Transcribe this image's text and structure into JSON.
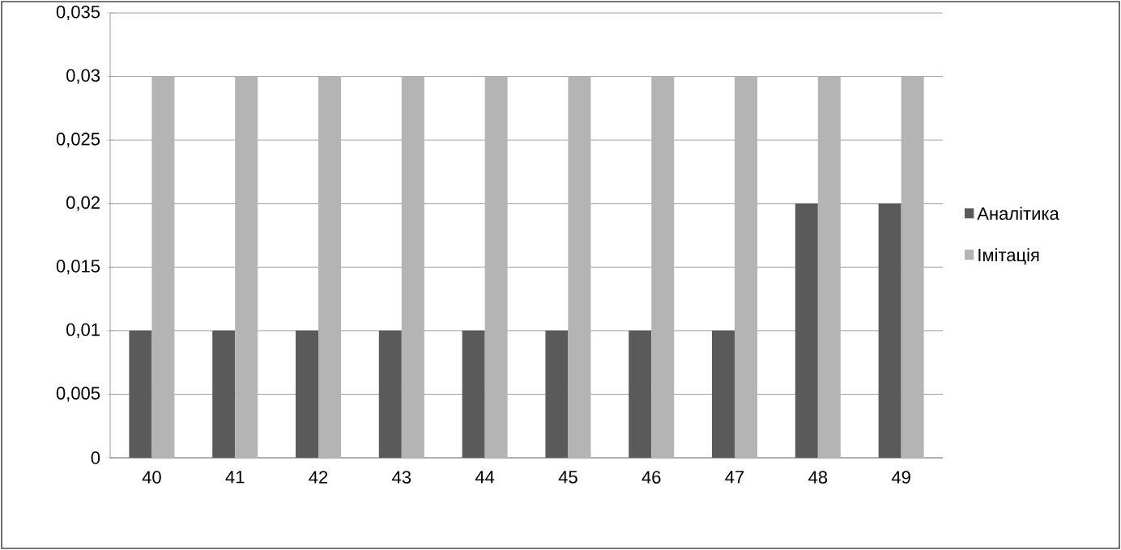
{
  "chart_data": {
    "type": "bar",
    "categories": [
      "40",
      "41",
      "42",
      "43",
      "44",
      "45",
      "46",
      "47",
      "48",
      "49"
    ],
    "series": [
      {
        "name": "Аналітика",
        "color": "#5a5a5a",
        "values": [
          0.01,
          0.01,
          0.01,
          0.01,
          0.01,
          0.01,
          0.01,
          0.01,
          0.02,
          0.02
        ]
      },
      {
        "name": "Імітація",
        "color": "#b4b4b4",
        "values": [
          0.03,
          0.03,
          0.03,
          0.03,
          0.03,
          0.03,
          0.03,
          0.03,
          0.03,
          0.03
        ]
      }
    ],
    "ylim": [
      0,
      0.035
    ],
    "yticks": [
      0,
      {
        "value": 0.005,
        "label": "0,005"
      },
      {
        "value": 0.01,
        "label": "0,01"
      },
      {
        "value": 0.015,
        "label": "0,015"
      },
      {
        "value": 0.02,
        "label": "0,02"
      },
      {
        "value": 0.025,
        "label": "0,025"
      },
      {
        "value": 0.03,
        "label": "0,03"
      },
      {
        "value": 0.035,
        "label": "0,035"
      }
    ],
    "grid": "y",
    "legend": "right"
  }
}
